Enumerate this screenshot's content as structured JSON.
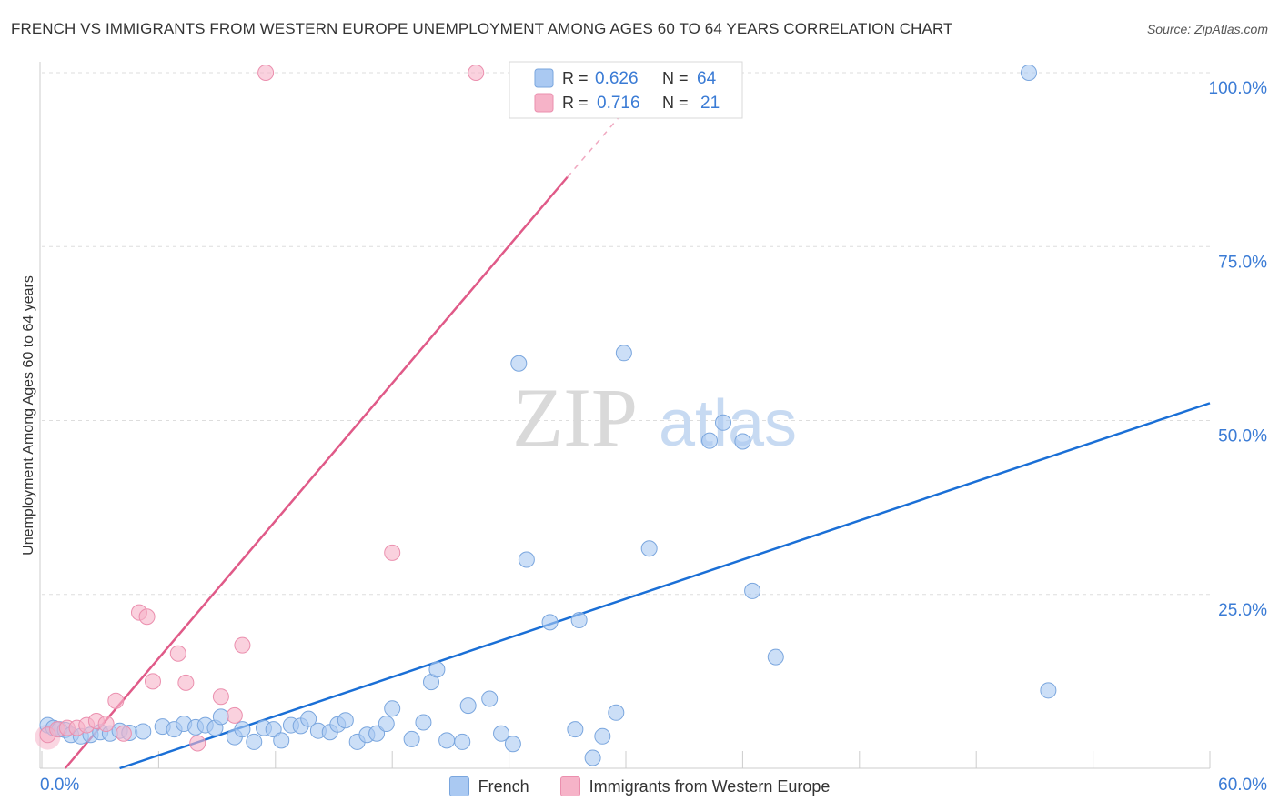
{
  "title": "FRENCH VS IMMIGRANTS FROM WESTERN EUROPE UNEMPLOYMENT AMONG AGES 60 TO 64 YEARS CORRELATION CHART",
  "source": "Source: ZipAtlas.com",
  "watermark": {
    "zip": "ZIP",
    "atlas": "atlas"
  },
  "colors": {
    "blue": "#1a6fd6",
    "blue_fill": "#aac9f2",
    "pink": "#e05a88",
    "pink_fill": "#f6b3c8",
    "axis_text": "#3a7bd5"
  },
  "legend_box": [
    {
      "r_label": "R =",
      "r_value": "0.626",
      "n_label": "N =",
      "n_value": "64"
    },
    {
      "r_label": "R =",
      "r_value": "0.716",
      "n_label": "N =",
      "n_value": "21"
    }
  ],
  "chart_data": {
    "type": "scatter",
    "title": "FRENCH VS IMMIGRANTS FROM WESTERN EUROPE UNEMPLOYMENT AMONG AGES 60 TO 64 YEARS CORRELATION CHART",
    "xlabel": "",
    "ylabel": "Unemployment Among Ages 60 to 64 years",
    "xlim": [
      0,
      60
    ],
    "ylim": [
      0,
      100
    ],
    "x_tick_labels": [
      "0.0%",
      "60.0%"
    ],
    "y_tick_labels": [
      {
        "value": 100,
        "label": "100.0%"
      },
      {
        "value": 75,
        "label": "75.0%"
      },
      {
        "value": 50,
        "label": "50.0%"
      },
      {
        "value": 25,
        "label": "25.0%"
      }
    ],
    "legend_position": "bottom",
    "series": [
      {
        "name": "French",
        "color": "#1a6fd6",
        "r": 0.626,
        "n": 64,
        "trend": {
          "x": [
            4,
            60
          ],
          "y": [
            0,
            52.5
          ]
        },
        "points": [
          [
            0.3,
            6.2
          ],
          [
            0.6,
            5.8
          ],
          [
            0.9,
            5.6
          ],
          [
            1.2,
            5.5
          ],
          [
            1.5,
            4.8
          ],
          [
            2.0,
            4.6
          ],
          [
            2.5,
            4.8
          ],
          [
            3.0,
            5.2
          ],
          [
            3.5,
            5.0
          ],
          [
            4.0,
            5.4
          ],
          [
            4.5,
            5.1
          ],
          [
            5.2,
            5.3
          ],
          [
            6.2,
            6.0
          ],
          [
            6.8,
            5.6
          ],
          [
            7.3,
            6.4
          ],
          [
            7.9,
            5.9
          ],
          [
            8.4,
            6.2
          ],
          [
            8.9,
            5.8
          ],
          [
            9.2,
            7.4
          ],
          [
            9.9,
            4.5
          ],
          [
            10.3,
            5.6
          ],
          [
            10.9,
            3.8
          ],
          [
            11.4,
            5.8
          ],
          [
            11.9,
            5.6
          ],
          [
            12.3,
            4.0
          ],
          [
            12.8,
            6.2
          ],
          [
            13.3,
            6.1
          ],
          [
            13.7,
            7.1
          ],
          [
            14.2,
            5.4
          ],
          [
            14.8,
            5.2
          ],
          [
            15.2,
            6.3
          ],
          [
            15.6,
            6.9
          ],
          [
            16.2,
            3.8
          ],
          [
            16.7,
            4.8
          ],
          [
            17.2,
            5.0
          ],
          [
            17.7,
            6.4
          ],
          [
            18.0,
            8.6
          ],
          [
            19.0,
            4.2
          ],
          [
            19.6,
            6.6
          ],
          [
            20.0,
            12.4
          ],
          [
            20.3,
            14.2
          ],
          [
            20.8,
            4.0
          ],
          [
            21.6,
            3.8
          ],
          [
            21.9,
            9.0
          ],
          [
            23.0,
            10.0
          ],
          [
            23.6,
            5.0
          ],
          [
            24.2,
            3.5
          ],
          [
            24.5,
            58.2
          ],
          [
            24.9,
            30.0
          ],
          [
            26.1,
            21.0
          ],
          [
            27.4,
            5.6
          ],
          [
            27.6,
            21.3
          ],
          [
            28.3,
            1.5
          ],
          [
            28.8,
            4.6
          ],
          [
            29.5,
            8.0
          ],
          [
            29.9,
            59.7
          ],
          [
            31.2,
            31.6
          ],
          [
            34.3,
            47.1
          ],
          [
            35.0,
            49.7
          ],
          [
            36.0,
            47.0
          ],
          [
            36.5,
            25.5
          ],
          [
            37.7,
            16.0
          ],
          [
            50.7,
            100.0
          ],
          [
            51.7,
            11.2
          ]
        ]
      },
      {
        "name": "Immigrants from Western Europe",
        "color": "#e05a88",
        "r": 0.716,
        "n": 21,
        "trend": {
          "x": [
            1.2,
            27.0
          ],
          "y": [
            0,
            85.0
          ]
        },
        "trend_dashed": {
          "x": [
            27.0,
            31.0
          ],
          "y": [
            85.0,
            98.0
          ]
        },
        "points": [
          [
            0.3,
            4.8
          ],
          [
            0.8,
            5.6
          ],
          [
            1.3,
            5.8
          ],
          [
            1.8,
            5.8
          ],
          [
            2.3,
            6.2
          ],
          [
            2.8,
            6.8
          ],
          [
            3.3,
            6.4
          ],
          [
            3.8,
            9.7
          ],
          [
            4.2,
            5.0
          ],
          [
            5.0,
            22.4
          ],
          [
            5.4,
            21.8
          ],
          [
            5.7,
            12.5
          ],
          [
            7.0,
            16.5
          ],
          [
            7.4,
            12.3
          ],
          [
            8.0,
            3.6
          ],
          [
            9.2,
            10.3
          ],
          [
            9.9,
            7.6
          ],
          [
            10.3,
            17.7
          ],
          [
            11.5,
            100.0
          ],
          [
            18.0,
            31.0
          ],
          [
            22.3,
            100.0
          ]
        ]
      }
    ]
  }
}
